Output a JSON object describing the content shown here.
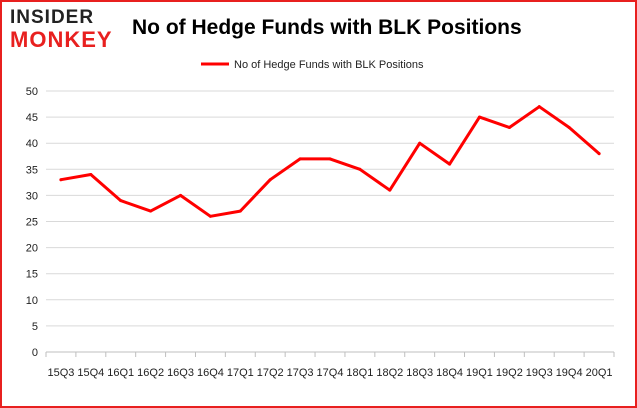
{
  "brand": {
    "logo_top": "INSIDER",
    "logo_bottom": "MONKEY"
  },
  "chart_data": {
    "type": "line",
    "title": "No of Hedge Funds with BLK Positions",
    "legend": {
      "position": "top-center"
    },
    "grid": {
      "y": true,
      "x": false
    },
    "ylim": [
      0,
      50
    ],
    "yticks": [
      0,
      5,
      10,
      15,
      20,
      25,
      30,
      35,
      40,
      45,
      50
    ],
    "categories": [
      "15Q3",
      "15Q4",
      "16Q1",
      "16Q2",
      "16Q3",
      "16Q4",
      "17Q1",
      "17Q2",
      "17Q3",
      "17Q4",
      "18Q1",
      "18Q2",
      "18Q3",
      "18Q4",
      "19Q1",
      "19Q2",
      "19Q3",
      "19Q4",
      "20Q1"
    ],
    "series": [
      {
        "name": "No of Hedge Funds with BLK Positions",
        "color": "#ff0000",
        "values": [
          33,
          34,
          29,
          27,
          30,
          26,
          27,
          33,
          37,
          37,
          35,
          31,
          40,
          36,
          45,
          43,
          47,
          43,
          38
        ]
      }
    ]
  }
}
